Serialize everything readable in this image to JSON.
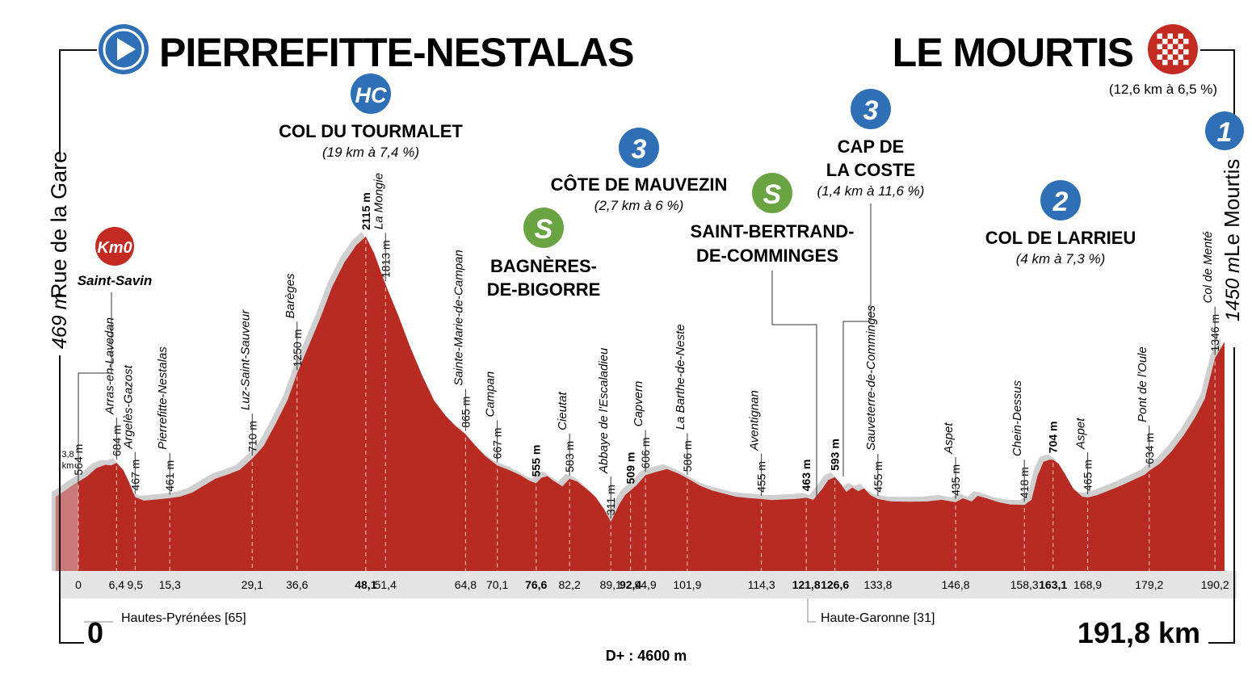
{
  "start": {
    "name": "PIERREFITTE-NESTALAS",
    "icon": "play-icon",
    "km": "0",
    "alt": "469 m",
    "place": "Rue de la Gare",
    "department": "Hautes-Pyrénées [65]"
  },
  "finish": {
    "name": "LE MOURTIS",
    "icon": "chequered-flag-icon",
    "note": "(12,6 km à 6,5 %)",
    "km": "191,8 km",
    "alt": "1450 m",
    "place": "Le Mourtis"
  },
  "elevation_gain": "D+ : 4600 m",
  "department_2": "Haute-Garonne [31]",
  "km0": {
    "badge": "Km0",
    "place": "Saint-Savin",
    "dist": "3,8 km"
  },
  "climbs": [
    {
      "cat": "HC",
      "name": "COL DU TOURMALET",
      "detail": "(19 km à 7,4 %)"
    },
    {
      "cat": "3",
      "name": "CÔTE DE MAUVEZIN",
      "detail": "(2,7 km à 6 %)"
    },
    {
      "cat": "3",
      "name_1": "CAP DE",
      "name_2": "LA COSTE",
      "detail": "(1,4 km à 11,6 %)"
    },
    {
      "cat": "2",
      "name": "COL DE LARRIEU",
      "detail": "(4 km à 7,3 %)"
    },
    {
      "cat": "1"
    }
  ],
  "sprints": [
    {
      "badge": "S",
      "name_1": "BAGNÈRES-",
      "name_2": "DE-BIGORRE"
    },
    {
      "badge": "S",
      "name_1": "SAINT-BERTRAND-",
      "name_2": "DE-COMMINGES"
    }
  ],
  "colors": {
    "profile": "#b72b22",
    "profile_start": "#c97a78",
    "ridge": "#cfcfcf",
    "axis_band": "#e4e4e4",
    "cat_badge": "#2f6fb6",
    "sprint_badge": "#6aa442",
    "km0_badge": "#c22a22",
    "finish_badge": "#c22a22"
  },
  "chart_data": {
    "type": "area",
    "x_unit": "km",
    "y_unit": "m",
    "xlim": [
      0,
      191.8
    ],
    "ylim": [
      0,
      2200
    ],
    "profile": [
      [
        -3.8,
        469
      ],
      [
        -2.5,
        500
      ],
      [
        -1,
        540
      ],
      [
        0,
        564
      ],
      [
        1.5,
        600
      ],
      [
        3,
        650
      ],
      [
        4.5,
        672
      ],
      [
        5.5,
        668
      ],
      [
        6.4,
        684
      ],
      [
        7.5,
        640
      ],
      [
        8.5,
        560
      ],
      [
        9.5,
        467
      ],
      [
        11,
        445
      ],
      [
        13,
        452
      ],
      [
        15.3,
        461
      ],
      [
        17,
        470
      ],
      [
        19,
        495
      ],
      [
        21,
        540
      ],
      [
        23,
        585
      ],
      [
        25,
        610
      ],
      [
        27,
        640
      ],
      [
        29.1,
        710
      ],
      [
        31,
        790
      ],
      [
        33,
        930
      ],
      [
        35,
        1080
      ],
      [
        36.6,
        1250
      ],
      [
        38.5,
        1420
      ],
      [
        40.5,
        1600
      ],
      [
        42.5,
        1800
      ],
      [
        44.5,
        1950
      ],
      [
        46.5,
        2060
      ],
      [
        48.1,
        2115
      ],
      [
        49.5,
        2010
      ],
      [
        51.4,
        1813
      ],
      [
        53.5,
        1620
      ],
      [
        55.5,
        1420
      ],
      [
        57.5,
        1240
      ],
      [
        59.5,
        1080
      ],
      [
        61.5,
        980
      ],
      [
        63,
        920
      ],
      [
        64.8,
        865
      ],
      [
        66.5,
        790
      ],
      [
        68,
        730
      ],
      [
        70.1,
        667
      ],
      [
        72,
        640
      ],
      [
        74,
        605
      ],
      [
        75.5,
        570
      ],
      [
        76.6,
        555
      ],
      [
        77.5,
        590
      ],
      [
        78.5,
        600
      ],
      [
        79.5,
        570
      ],
      [
        81,
        535
      ],
      [
        82.2,
        583
      ],
      [
        83.5,
        565
      ],
      [
        85,
        520
      ],
      [
        86.5,
        470
      ],
      [
        88,
        390
      ],
      [
        89.1,
        311
      ],
      [
        90.5,
        420
      ],
      [
        91.5,
        480
      ],
      [
        92.4,
        509
      ],
      [
        93.5,
        545
      ],
      [
        94.9,
        606
      ],
      [
        96.5,
        625
      ],
      [
        98.5,
        645
      ],
      [
        100.5,
        615
      ],
      [
        101.9,
        586
      ],
      [
        104,
        540
      ],
      [
        106,
        510
      ],
      [
        108,
        490
      ],
      [
        110,
        470
      ],
      [
        112,
        462
      ],
      [
        114.3,
        455
      ],
      [
        116,
        448
      ],
      [
        118,
        452
      ],
      [
        120,
        455
      ],
      [
        121.8,
        463
      ],
      [
        123,
        450
      ],
      [
        124.5,
        520
      ],
      [
        125.5,
        575
      ],
      [
        126.6,
        593
      ],
      [
        127.5,
        555
      ],
      [
        128.5,
        500
      ],
      [
        129.5,
        528
      ],
      [
        130.5,
        505
      ],
      [
        131.5,
        522
      ],
      [
        132.5,
        480
      ],
      [
        133.8,
        455
      ],
      [
        136,
        440
      ],
      [
        139,
        438
      ],
      [
        142,
        440
      ],
      [
        144.5,
        450
      ],
      [
        146.8,
        435
      ],
      [
        148,
        460
      ],
      [
        149.5,
        440
      ],
      [
        150.5,
        475
      ],
      [
        152,
        460
      ],
      [
        154,
        435
      ],
      [
        156,
        420
      ],
      [
        158.3,
        418
      ],
      [
        159.5,
        450
      ],
      [
        160.5,
        600
      ],
      [
        161.5,
        690
      ],
      [
        162.5,
        704
      ],
      [
        163.1,
        704
      ],
      [
        164,
        680
      ],
      [
        165,
        620
      ],
      [
        166.5,
        520
      ],
      [
        168,
        470
      ],
      [
        168.9,
        465
      ],
      [
        170.5,
        480
      ],
      [
        172.5,
        510
      ],
      [
        174.5,
        540
      ],
      [
        176.5,
        575
      ],
      [
        178.5,
        610
      ],
      [
        179.2,
        634
      ],
      [
        181,
        680
      ],
      [
        183,
        760
      ],
      [
        185,
        860
      ],
      [
        187,
        980
      ],
      [
        188.5,
        1090
      ],
      [
        190.2,
        1346
      ],
      [
        191.8,
        1450
      ]
    ],
    "annotations": [
      {
        "km": 0,
        "km_label": "0",
        "alt": "564 m",
        "place": "",
        "bold": false
      },
      {
        "km": 6.4,
        "km_label": "6,4",
        "alt": "684 m",
        "place": "Arras-en-Lavedan",
        "bold": false
      },
      {
        "km": 9.5,
        "km_label": "9,5",
        "alt": "467 m",
        "place": "Argelès-Gazost",
        "bold": false
      },
      {
        "km": 15.3,
        "km_label": "15,3",
        "alt": "461 m",
        "place": "Pierrefitte-Nestalas",
        "bold": false
      },
      {
        "km": 29.1,
        "km_label": "29,1",
        "alt": "710 m",
        "place": "Luz-Saint-Sauveur",
        "bold": false
      },
      {
        "km": 36.6,
        "km_label": "36,6",
        "alt": "1250 m",
        "place": "Barèges",
        "bold": false
      },
      {
        "km": 48.1,
        "km_label": "48,1",
        "alt": "2115 m",
        "place": "",
        "bold": true
      },
      {
        "km": 51.4,
        "km_label": "51,4",
        "alt": "1813 m",
        "place": "La Mongie",
        "bold": false
      },
      {
        "km": 64.8,
        "km_label": "64,8",
        "alt": "865 m",
        "place": "Sainte-Marie-de-Campan",
        "bold": false
      },
      {
        "km": 70.1,
        "km_label": "70,1",
        "alt": "667 m",
        "place": "Campan",
        "bold": false
      },
      {
        "km": 76.6,
        "km_label": "76,6",
        "alt": "555 m",
        "place": "",
        "bold": true
      },
      {
        "km": 82.2,
        "km_label": "82,2",
        "alt": "583 m",
        "place": "Cieutat",
        "bold": false
      },
      {
        "km": 89.1,
        "km_label": "89,1",
        "alt": "311 m",
        "place": "Abbaye de l'Escaladieu",
        "bold": false
      },
      {
        "km": 92.4,
        "km_label": "92,4",
        "alt": "509 m",
        "place": "",
        "bold": true
      },
      {
        "km": 94.9,
        "km_label": "94,9",
        "alt": "606 m",
        "place": "Capvern",
        "bold": false
      },
      {
        "km": 101.9,
        "km_label": "101,9",
        "alt": "586 m",
        "place": "La Barthe-de-Neste",
        "bold": false
      },
      {
        "km": 114.3,
        "km_label": "114,3",
        "alt": "455 m",
        "place": "Aventignan",
        "bold": false
      },
      {
        "km": 121.8,
        "km_label": "121,8",
        "alt": "463 m",
        "place": "",
        "bold": true
      },
      {
        "km": 126.6,
        "km_label": "126,6",
        "alt": "593 m",
        "place": "",
        "bold": true
      },
      {
        "km": 133.8,
        "km_label": "133,8",
        "alt": "455 m",
        "place": "Sauveterre-de-Comminges",
        "bold": false
      },
      {
        "km": 146.8,
        "km_label": "146,8",
        "alt": "435 m",
        "place": "Aspet",
        "bold": false
      },
      {
        "km": 158.3,
        "km_label": "158,3",
        "alt": "418 m",
        "place": "Chein-Dessus",
        "bold": false
      },
      {
        "km": 163.1,
        "km_label": "163,1",
        "alt": "704  m",
        "place": "",
        "bold": true
      },
      {
        "km": 168.9,
        "km_label": "168,9",
        "alt": "465 m",
        "place": "Aspet",
        "bold": false
      },
      {
        "km": 179.2,
        "km_label": "179,2",
        "alt": "634 m",
        "place": "Pont de l'Oule",
        "bold": false
      },
      {
        "km": 190.2,
        "km_label": "190,2",
        "alt": "1346 m",
        "place": "Col de Menté",
        "bold": false
      }
    ]
  }
}
